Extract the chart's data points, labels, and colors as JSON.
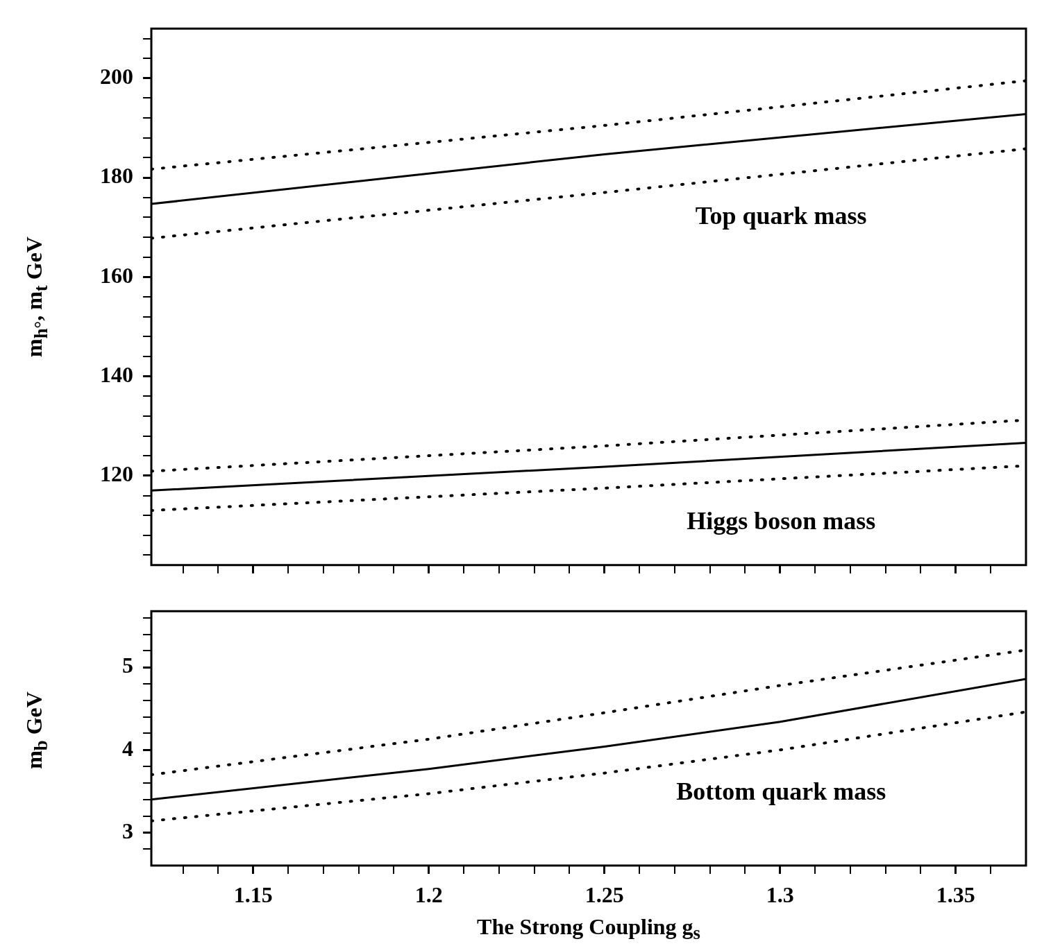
{
  "chart_data": [
    {
      "type": "line",
      "ylabel": "m$_{h°}$, m$_{t}$ GeV",
      "marker": "none",
      "tick_labels": "y",
      "xlim": [
        1.121,
        1.37
      ],
      "xticks": [
        {
          "value": 1.13,
          "label": null
        },
        {
          "value": 1.14,
          "label": null
        },
        1.15,
        {
          "value": 1.16,
          "label": null
        },
        {
          "value": 1.17,
          "label": null
        },
        {
          "value": 1.18,
          "label": null
        },
        {
          "value": 1.19,
          "label": null
        },
        1.2,
        {
          "value": 1.21,
          "label": null
        },
        {
          "value": 1.22,
          "label": null
        },
        {
          "value": 1.23,
          "label": null
        },
        {
          "value": 1.24,
          "label": null
        },
        1.25,
        {
          "value": 1.26,
          "label": null
        },
        {
          "value": 1.27,
          "label": null
        },
        {
          "value": 1.28,
          "label": null
        },
        {
          "value": 1.29,
          "label": null
        },
        1.3,
        {
          "value": 1.31,
          "label": null
        },
        {
          "value": 1.32,
          "label": null
        },
        {
          "value": 1.33,
          "label": null
        },
        {
          "value": 1.34,
          "label": null
        },
        1.35,
        {
          "value": 1.36,
          "label": null
        }
      ],
      "ylim": [
        102,
        210
      ],
      "yticks": [
        {
          "value": 104,
          "label": null
        },
        {
          "value": 108,
          "label": null
        },
        {
          "value": 112,
          "label": null
        },
        {
          "value": 116,
          "label": null
        },
        120,
        {
          "value": 124,
          "label": null
        },
        {
          "value": 128,
          "label": null
        },
        {
          "value": 132,
          "label": null
        },
        {
          "value": 136,
          "label": null
        },
        140,
        {
          "value": 144,
          "label": null
        },
        {
          "value": 148,
          "label": null
        },
        {
          "value": 152,
          "label": null
        },
        {
          "value": 156,
          "label": null
        },
        160,
        {
          "value": 164,
          "label": null
        },
        {
          "value": 168,
          "label": null
        },
        {
          "value": 172,
          "label": null
        },
        {
          "value": 176,
          "label": null
        },
        180,
        {
          "value": 184,
          "label": null
        },
        {
          "value": 188,
          "label": null
        },
        {
          "value": 192,
          "label": null
        },
        {
          "value": 196,
          "label": null
        },
        200,
        {
          "value": 204,
          "label": null
        },
        {
          "value": 208,
          "label": null
        }
      ],
      "series": [
        {
          "color": "#000000",
          "line_style": "dotted",
          "x": [
            1.121,
            1.25,
            1.37
          ],
          "values": [
            181.7,
            190.5,
            199.5
          ]
        },
        {
          "color": "#000000",
          "line_style": "solid",
          "x": [
            1.121,
            1.25,
            1.37
          ],
          "values": [
            174.7,
            184.7,
            192.8
          ]
        },
        {
          "color": "#000000",
          "line_style": "dotted",
          "x": [
            1.121,
            1.25,
            1.37
          ],
          "values": [
            167.8,
            177,
            185.8
          ]
        },
        {
          "color": "#000000",
          "line_style": "dotted",
          "x": [
            1.121,
            1.25,
            1.37
          ],
          "values": [
            120.9,
            126,
            131.2
          ]
        },
        {
          "color": "#000000",
          "line_style": "solid",
          "x": [
            1.121,
            1.25,
            1.37
          ],
          "values": [
            117,
            121.8,
            126.6
          ]
        },
        {
          "color": "#000000",
          "line_style": "dotted",
          "x": [
            1.121,
            1.25,
            1.37
          ],
          "values": [
            113,
            117.5,
            122
          ]
        }
      ],
      "annotations": [
        "Top quark mass",
        "Higgs boson mass"
      ]
    },
    {
      "type": "line",
      "xlabel": "The Strong Coupling g$_{s}$",
      "ylabel": "m$_{b}$ GeV",
      "marker": "none",
      "xlim": [
        1.121,
        1.37
      ],
      "xticks": [
        {
          "value": 1.13,
          "label": null
        },
        {
          "value": 1.14,
          "label": null
        },
        1.15,
        {
          "value": 1.16,
          "label": null
        },
        {
          "value": 1.17,
          "label": null
        },
        {
          "value": 1.18,
          "label": null
        },
        {
          "value": 1.19,
          "label": null
        },
        1.2,
        {
          "value": 1.21,
          "label": null
        },
        {
          "value": 1.22,
          "label": null
        },
        {
          "value": 1.23,
          "label": null
        },
        {
          "value": 1.24,
          "label": null
        },
        1.25,
        {
          "value": 1.26,
          "label": null
        },
        {
          "value": 1.27,
          "label": null
        },
        {
          "value": 1.28,
          "label": null
        },
        {
          "value": 1.29,
          "label": null
        },
        1.3,
        {
          "value": 1.31,
          "label": null
        },
        {
          "value": 1.32,
          "label": null
        },
        {
          "value": 1.33,
          "label": null
        },
        {
          "value": 1.34,
          "label": null
        },
        1.35,
        {
          "value": 1.36,
          "label": null
        }
      ],
      "ylim": [
        2.6,
        5.68
      ],
      "yticks": [
        {
          "value": 2.8,
          "label": null
        },
        3,
        {
          "value": 3.2,
          "label": null
        },
        {
          "value": 3.4,
          "label": null
        },
        {
          "value": 3.6,
          "label": null
        },
        {
          "value": 3.8,
          "label": null
        },
        4,
        {
          "value": 4.2,
          "label": null
        },
        {
          "value": 4.4,
          "label": null
        },
        {
          "value": 4.6,
          "label": null
        },
        {
          "value": 4.8,
          "label": null
        },
        5,
        {
          "value": 5.2,
          "label": null
        },
        {
          "value": 5.4,
          "label": null
        },
        {
          "value": 5.6,
          "label": null
        }
      ],
      "series": [
        {
          "color": "#000000",
          "line_style": "dotted",
          "x": [
            1.121,
            1.2,
            1.25,
            1.3,
            1.37
          ],
          "values": [
            3.7,
            4.13,
            4.45,
            4.78,
            5.21
          ]
        },
        {
          "color": "#000000",
          "line_style": "solid",
          "x": [
            1.121,
            1.2,
            1.25,
            1.3,
            1.37
          ],
          "values": [
            3.4,
            3.77,
            4.04,
            4.34,
            4.86
          ]
        },
        {
          "color": "#000000",
          "line_style": "dotted",
          "x": [
            1.121,
            1.2,
            1.25,
            1.3,
            1.37
          ],
          "values": [
            3.14,
            3.47,
            3.72,
            4.0,
            4.46
          ]
        }
      ],
      "annotations": [
        "Bottom quark mass"
      ]
    }
  ]
}
